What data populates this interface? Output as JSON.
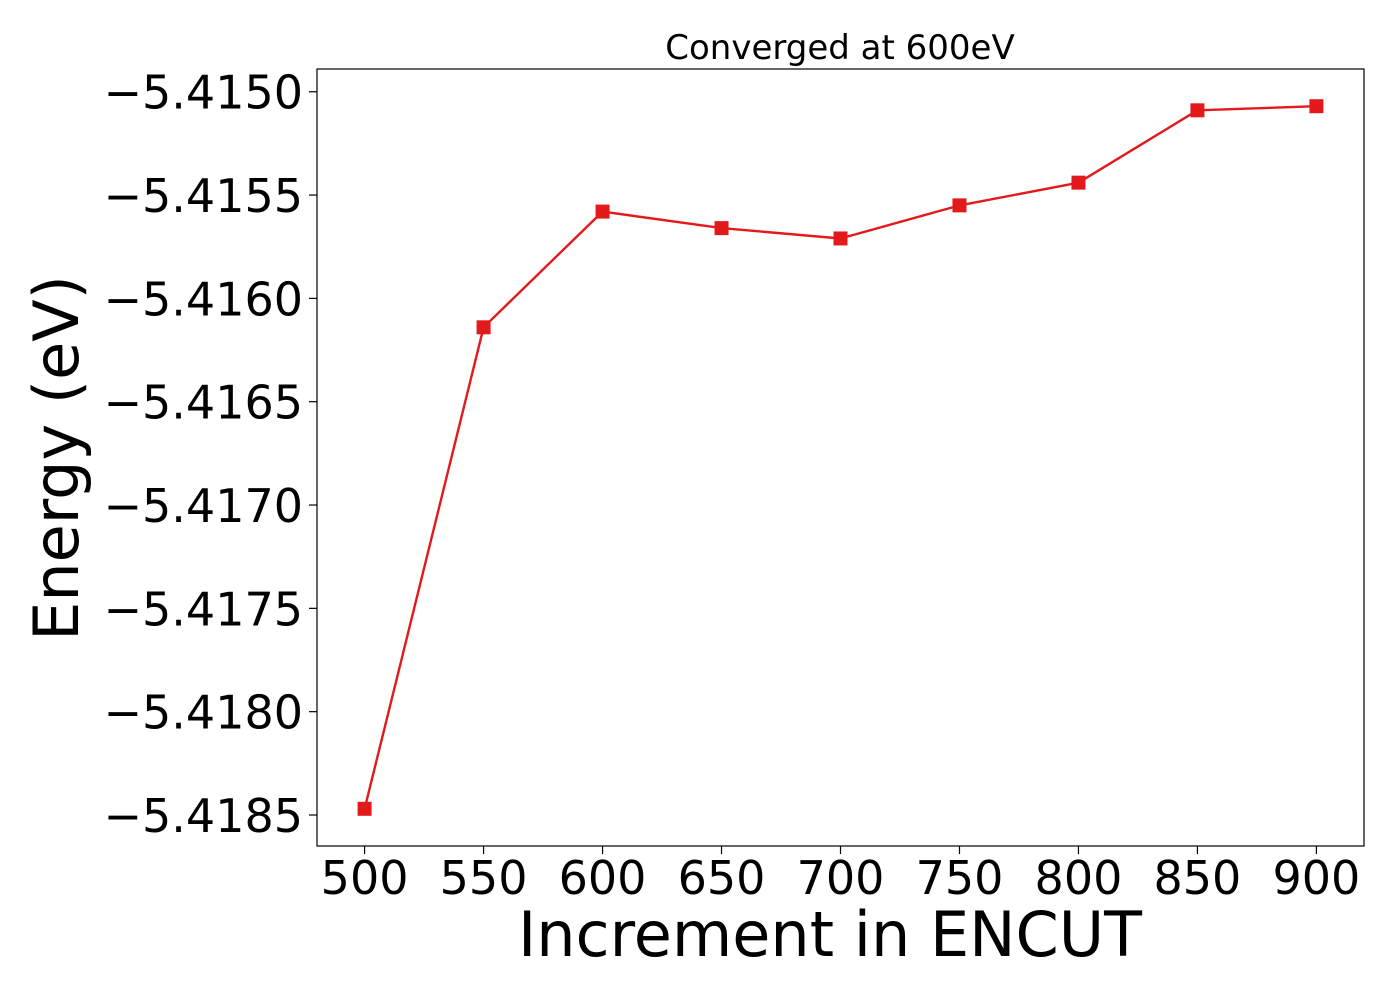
{
  "chart_data": {
    "type": "line",
    "title": "Converged at 600eV",
    "xlabel": "Increment in ENCUT",
    "ylabel": "Energy (eV)",
    "x": [
      500,
      550,
      600,
      650,
      700,
      750,
      800,
      850,
      900
    ],
    "series": [
      {
        "values": [
          -5.41847,
          -5.41614,
          -5.41558,
          -5.41566,
          -5.41571,
          -5.41555,
          -5.41544,
          -5.41509,
          -5.41507
        ],
        "color": "#e31a1c",
        "marker": "square"
      }
    ],
    "xticks": [
      500,
      550,
      600,
      650,
      700,
      750,
      800,
      850,
      900
    ],
    "yticks": [
      -5.415,
      -5.4155,
      -5.416,
      -5.4165,
      -5.417,
      -5.4175,
      -5.418,
      -5.4185
    ],
    "ytick_labels": [
      "−5.4150",
      "−5.4155",
      "−5.4160",
      "−5.4165",
      "−5.4170",
      "−5.4175",
      "−5.4180",
      "−5.4185"
    ],
    "xlim": [
      480,
      920
    ],
    "ylim": [
      -5.41865,
      -5.41489
    ],
    "grid": false,
    "legend": "none"
  }
}
